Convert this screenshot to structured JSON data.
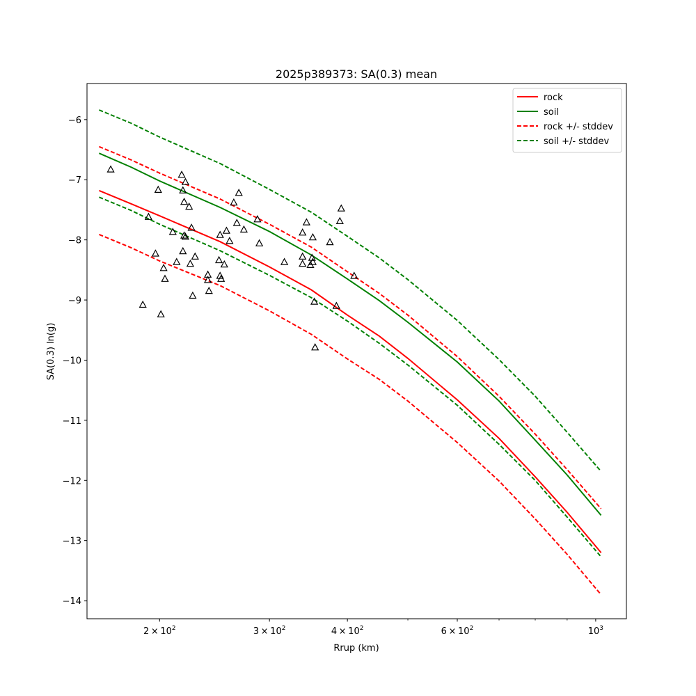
{
  "chart_data": {
    "type": "line",
    "title": "2025p389373: SA(0.3) mean",
    "xlabel": "Rrup (km)",
    "ylabel": "SA(0.3) ln(g)",
    "xscale": "log",
    "xlim": [
      153,
      1120
    ],
    "ylim": [
      -14.3,
      -5.4
    ],
    "x_ticks": [
      {
        "value": 200,
        "mantissa": "2",
        "exponent": "2"
      },
      {
        "value": 300,
        "mantissa": "3",
        "exponent": "2"
      },
      {
        "value": 400,
        "mantissa": "4",
        "exponent": "2"
      },
      {
        "value": 600,
        "mantissa": "6",
        "exponent": "2"
      },
      {
        "value": 1000,
        "mantissa": "",
        "exponent": "3"
      }
    ],
    "x_minor_ticks": [
      500,
      700,
      800,
      900
    ],
    "y_ticks": [
      -6,
      -7,
      -8,
      -9,
      -10,
      -11,
      -12,
      -13,
      -14
    ],
    "y_tick_labels": [
      "−6",
      "−7",
      "−8",
      "−9",
      "−10",
      "−11",
      "−12",
      "−13",
      "−14"
    ],
    "x_tick_base": "10",
    "x_tick_times": "×",
    "grid": false,
    "legend_position": "top-right",
    "series": [
      {
        "name": "rock",
        "color": "#ff0000",
        "dash": false,
        "x": [
          160,
          180,
          200,
          250,
          300,
          350,
          400,
          450,
          500,
          600,
          700,
          800,
          900,
          1020
        ],
        "y": [
          -7.18,
          -7.4,
          -7.6,
          -8.03,
          -8.45,
          -8.83,
          -9.25,
          -9.6,
          -9.97,
          -10.66,
          -11.3,
          -11.94,
          -12.53,
          -13.2
        ]
      },
      {
        "name": "soil",
        "color": "#008000",
        "dash": false,
        "x": [
          160,
          180,
          200,
          250,
          300,
          350,
          400,
          450,
          500,
          600,
          700,
          800,
          900,
          1020
        ],
        "y": [
          -6.56,
          -6.79,
          -7.02,
          -7.46,
          -7.86,
          -8.25,
          -8.65,
          -9.01,
          -9.37,
          -10.03,
          -10.68,
          -11.33,
          -11.91,
          -12.58
        ]
      },
      {
        "name": "rock +/- stddev",
        "color": "#ff0000",
        "dash": true,
        "x": [
          160,
          180,
          200,
          250,
          300,
          350,
          400,
          450,
          500,
          600,
          700,
          800,
          900,
          1020
        ],
        "y": [
          -6.45,
          -6.67,
          -6.89,
          -7.32,
          -7.74,
          -8.12,
          -8.53,
          -8.89,
          -9.25,
          -9.94,
          -10.6,
          -11.23,
          -11.82,
          -12.47
        ]
      },
      {
        "name": "",
        "color": "#ff0000",
        "dash": true,
        "x": [
          160,
          180,
          200,
          250,
          300,
          350,
          400,
          450,
          500,
          600,
          700,
          800,
          900,
          1020
        ],
        "y": [
          -7.91,
          -8.13,
          -8.35,
          -8.76,
          -9.18,
          -9.57,
          -9.98,
          -10.32,
          -10.68,
          -11.37,
          -12.01,
          -12.64,
          -13.23,
          -13.9
        ]
      },
      {
        "name": "soil +/- stddev",
        "color": "#008000",
        "dash": true,
        "x": [
          160,
          180,
          200,
          250,
          300,
          350,
          400,
          450,
          500,
          600,
          700,
          800,
          900,
          1020
        ],
        "y": [
          -5.84,
          -6.06,
          -6.29,
          -6.73,
          -7.16,
          -7.54,
          -7.94,
          -8.3,
          -8.66,
          -9.34,
          -9.99,
          -10.6,
          -11.2,
          -11.85
        ]
      },
      {
        "name": "",
        "color": "#008000",
        "dash": true,
        "x": [
          160,
          180,
          200,
          250,
          300,
          350,
          400,
          450,
          500,
          600,
          700,
          800,
          900,
          1020
        ],
        "y": [
          -7.29,
          -7.51,
          -7.74,
          -8.18,
          -8.59,
          -8.96,
          -9.35,
          -9.72,
          -10.08,
          -10.75,
          -11.4,
          -12.0,
          -12.61,
          -13.27
        ]
      }
    ],
    "observations": {
      "marker": "triangle",
      "points": [
        [
          167,
          -6.83
        ],
        [
          188,
          -9.08
        ],
        [
          192,
          -7.62
        ],
        [
          197,
          -8.23
        ],
        [
          199,
          -7.17
        ],
        [
          201,
          -9.24
        ],
        [
          203,
          -8.47
        ],
        [
          204,
          -8.65
        ],
        [
          210,
          -7.87
        ],
        [
          213,
          -8.37
        ],
        [
          217,
          -6.92
        ],
        [
          218,
          -7.18
        ],
        [
          218,
          -8.19
        ],
        [
          219,
          -7.37
        ],
        [
          219,
          -7.93
        ],
        [
          220,
          -7.95
        ],
        [
          220,
          -7.04
        ],
        [
          223,
          -7.45
        ],
        [
          225,
          -7.8
        ],
        [
          224,
          -8.4
        ],
        [
          226,
          -8.93
        ],
        [
          228,
          -8.28
        ],
        [
          239,
          -8.58
        ],
        [
          239,
          -8.67
        ],
        [
          240,
          -8.85
        ],
        [
          249,
          -8.34
        ],
        [
          250,
          -7.92
        ],
        [
          250,
          -8.6
        ],
        [
          251,
          -8.65
        ],
        [
          254,
          -8.41
        ],
        [
          256,
          -7.85
        ],
        [
          259,
          -8.02
        ],
        [
          263,
          -7.38
        ],
        [
          266,
          -7.72
        ],
        [
          268,
          -7.22
        ],
        [
          273,
          -7.83
        ],
        [
          287,
          -7.66
        ],
        [
          289,
          -8.06
        ],
        [
          317,
          -8.37
        ],
        [
          339,
          -7.88
        ],
        [
          339,
          -8.28
        ],
        [
          339,
          -8.4
        ],
        [
          344,
          -7.71
        ],
        [
          349,
          -8.42
        ],
        [
          352,
          -7.96
        ],
        [
          351,
          -8.3
        ],
        [
          352,
          -8.37
        ],
        [
          354,
          -9.03
        ],
        [
          355,
          -9.79
        ],
        [
          375,
          -8.04
        ],
        [
          384,
          -9.1
        ],
        [
          389,
          -7.69
        ],
        [
          391,
          -7.48
        ],
        [
          410,
          -8.6
        ]
      ]
    }
  }
}
